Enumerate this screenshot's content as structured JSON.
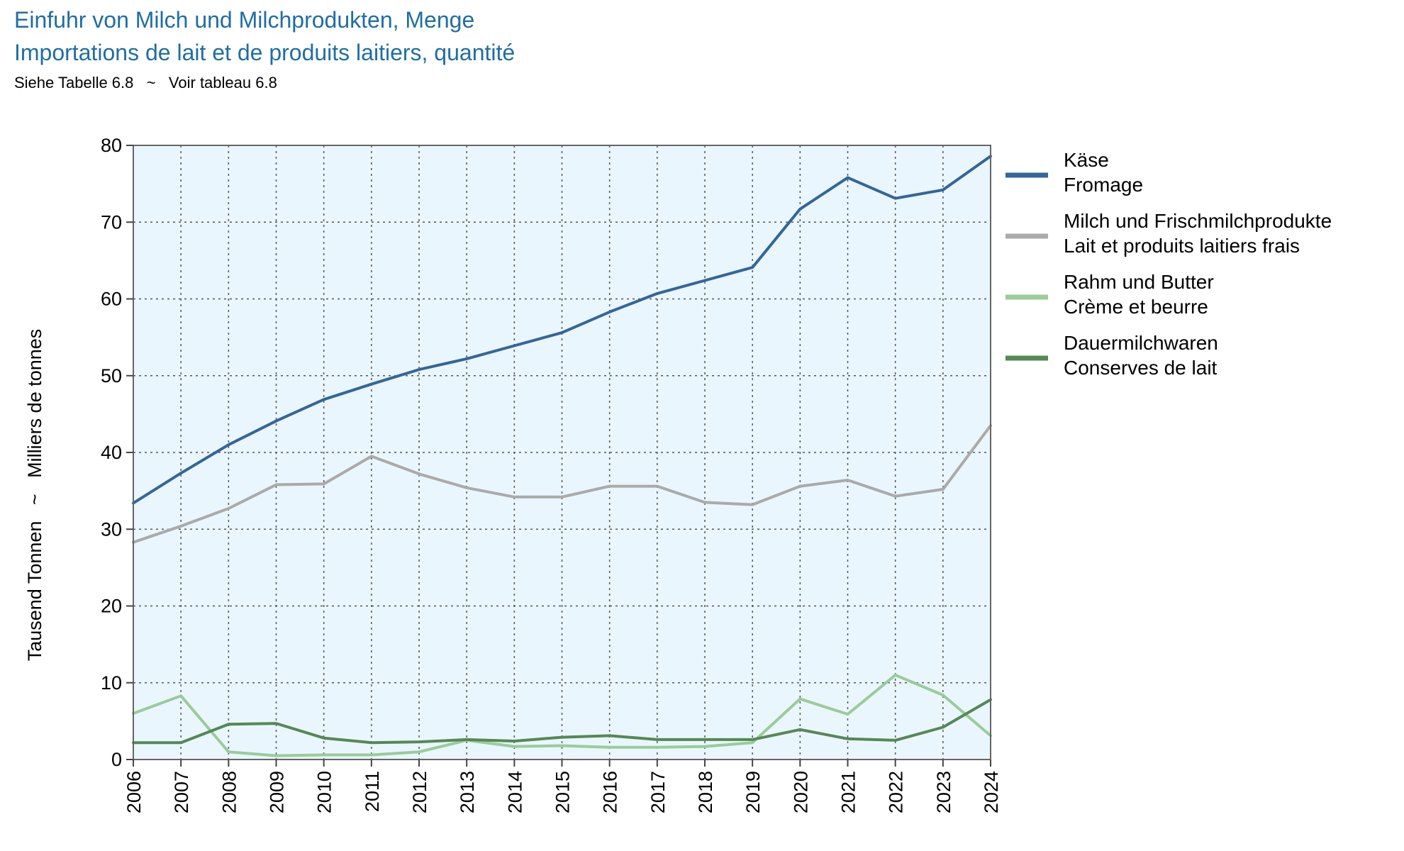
{
  "title_de": "Einfuhr von Milch und Milchprodukten, Menge",
  "title_fr": "Importations de lait et de produits laitiers, quantité",
  "subtitle": "Siehe Tabelle 6.8   ~   Voir tableau 6.8",
  "colors": {
    "plot_background": "#eaf6fd",
    "title": "#1f6ea3",
    "kaese": "#336699",
    "milch": "#aaaaaa",
    "rahm": "#99cc99",
    "dauer": "#558855"
  },
  "chart_data": {
    "type": "line",
    "ylabel": "Tausend Tonnen   ~   Milliers de tonnes",
    "xlabel": "",
    "ylim": [
      0,
      80
    ],
    "yticks": [
      0,
      10,
      20,
      30,
      40,
      50,
      60,
      70,
      80
    ],
    "grid": true,
    "legend_position": "right",
    "x": [
      "2006",
      "2007",
      "2008",
      "2009",
      "2010",
      "2011",
      "2012",
      "2013",
      "2014",
      "2015",
      "2016",
      "2017",
      "2018",
      "2019",
      "2020",
      "2021",
      "2022",
      "2023",
      "2024"
    ],
    "series": [
      {
        "name_de": "Käse",
        "name_fr": "Fromage",
        "color": "#336699",
        "values": [
          33.4,
          37.3,
          41.0,
          44.1,
          46.9,
          48.9,
          50.8,
          52.2,
          53.9,
          55.6,
          58.3,
          60.7,
          62.4,
          64.1,
          71.7,
          75.8,
          73.1,
          74.2,
          78.6
        ]
      },
      {
        "name_de": "Milch und Frischmilchprodukte",
        "name_fr": "Lait et produits laitiers frais",
        "color": "#aaaaaa",
        "values": [
          28.3,
          30.4,
          32.7,
          35.8,
          35.9,
          39.5,
          37.2,
          35.4,
          34.2,
          34.2,
          35.6,
          35.6,
          33.5,
          33.2,
          35.6,
          36.4,
          34.3,
          35.2,
          43.5
        ]
      },
      {
        "name_de": "Rahm und Butter",
        "name_fr": "Crème et beurre",
        "color": "#99cc99",
        "values": [
          6.0,
          8.3,
          1.0,
          0.5,
          0.6,
          0.6,
          1.0,
          2.5,
          1.7,
          1.8,
          1.6,
          1.6,
          1.7,
          2.2,
          7.9,
          5.9,
          11.0,
          8.4,
          3.1
        ]
      },
      {
        "name_de": "Dauermilchwaren",
        "name_fr": "Conserves de lait",
        "color": "#558855",
        "values": [
          2.2,
          2.2,
          4.6,
          4.7,
          2.8,
          2.2,
          2.3,
          2.6,
          2.4,
          2.9,
          3.1,
          2.6,
          2.6,
          2.6,
          3.9,
          2.7,
          2.5,
          4.2,
          7.8
        ]
      }
    ]
  }
}
